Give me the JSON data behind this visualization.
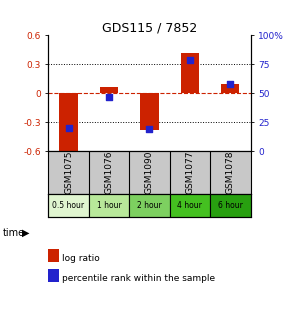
{
  "title": "GDS115 / 7852",
  "samples": [
    "GSM1075",
    "GSM1076",
    "GSM1090",
    "GSM1077",
    "GSM1078"
  ],
  "time_labels": [
    "0.5 hour",
    "1 hour",
    "2 hour",
    "4 hour",
    "6 hour"
  ],
  "time_colors": [
    "#e0f5d0",
    "#b8e89a",
    "#7dd060",
    "#44c020",
    "#28a010"
  ],
  "log_ratios": [
    -0.62,
    0.07,
    -0.38,
    0.42,
    0.1
  ],
  "percentile_ranks": [
    20,
    47,
    19,
    79,
    58
  ],
  "ylim_left": [
    -0.6,
    0.6
  ],
  "ylim_right": [
    0,
    100
  ],
  "yticks_left": [
    -0.6,
    -0.3,
    0.0,
    0.3,
    0.6
  ],
  "yticks_right": [
    0,
    25,
    50,
    75,
    100
  ],
  "ytick_labels_left": [
    "-0.6",
    "-0.3",
    "0",
    "0.3",
    "0.6"
  ],
  "ytick_labels_right": [
    "0",
    "25",
    "50",
    "75",
    "100%"
  ],
  "bar_color": "#cc2200",
  "dot_color": "#2222cc",
  "zero_line_color": "#cc2200",
  "grid_color": "#000000",
  "bg_color": "#ffffff",
  "plot_bg": "#ffffff",
  "sample_bg": "#c8c8c8",
  "bar_width": 0.45
}
